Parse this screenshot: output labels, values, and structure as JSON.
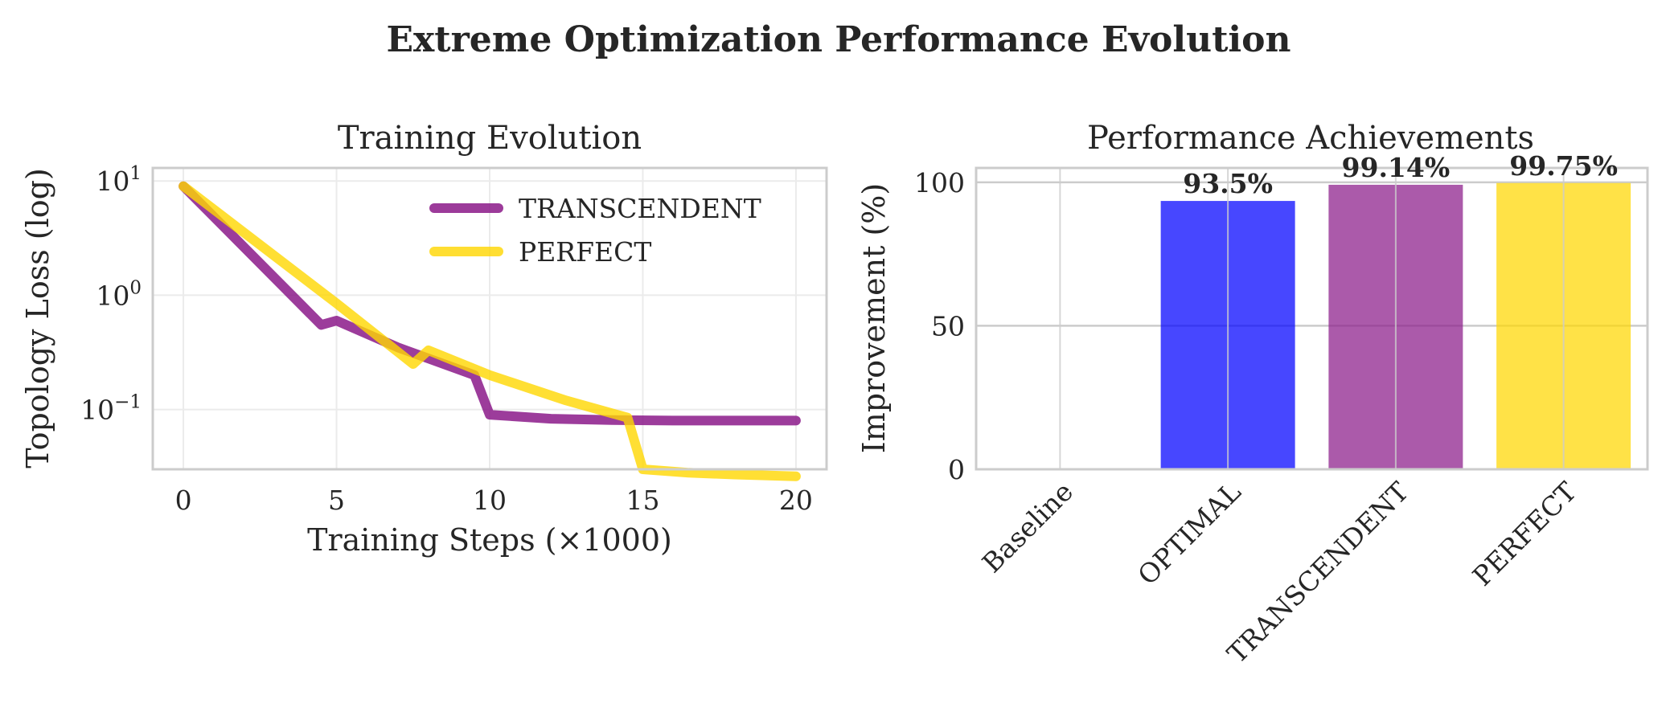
{
  "title": "Extreme Optimization Performance Evolution",
  "chart_data": [
    {
      "type": "line",
      "title": "Training Evolution",
      "xlabel": "Training Steps (×1000)",
      "ylabel": "Topology Loss (log)",
      "yscale": "log",
      "xlim": [
        -1,
        21
      ],
      "ylim": [
        0.03,
        13
      ],
      "xticks": [
        0,
        5,
        10,
        15,
        20
      ],
      "yticks": [
        {
          "value": 10,
          "base": "10",
          "exp": "1"
        },
        {
          "value": 1,
          "base": "10",
          "exp": "0"
        },
        {
          "value": 0.1,
          "base": "10",
          "exp": "−1"
        }
      ],
      "grid": true,
      "legend": "top-right",
      "series": [
        {
          "name": "TRANSCENDENT",
          "color": "#8B1A89",
          "x": [
            0,
            4.5,
            5,
            7,
            9.5,
            10,
            12,
            14,
            16,
            18,
            20
          ],
          "y": [
            9,
            0.55,
            0.6,
            0.35,
            0.2,
            0.09,
            0.083,
            0.081,
            0.08,
            0.08,
            0.08
          ]
        },
        {
          "name": "PERFECT",
          "color": "#FFD700",
          "x": [
            0,
            5,
            7.5,
            8,
            10,
            12.5,
            14.5,
            15,
            16.5,
            18,
            20
          ],
          "y": [
            9,
            0.85,
            0.25,
            0.33,
            0.2,
            0.12,
            0.085,
            0.03,
            0.028,
            0.027,
            0.026
          ]
        }
      ]
    },
    {
      "type": "bar",
      "title": "Performance Achievements",
      "xlabel": "",
      "ylabel": "Improvement (%)",
      "categories": [
        "Baseline",
        "OPTIMAL",
        "TRANSCENDENT",
        "PERFECT"
      ],
      "values": [
        0,
        93.5,
        99.14,
        99.75
      ],
      "value_labels": [
        "",
        "93.5%",
        "99.14%",
        "99.75%"
      ],
      "colors": [
        "#0000FF",
        "#0000FF",
        "#8B1A89",
        "#FFD700"
      ],
      "ylim": [
        0,
        105
      ],
      "yticks": [
        0,
        50,
        100
      ],
      "grid": true
    }
  ]
}
